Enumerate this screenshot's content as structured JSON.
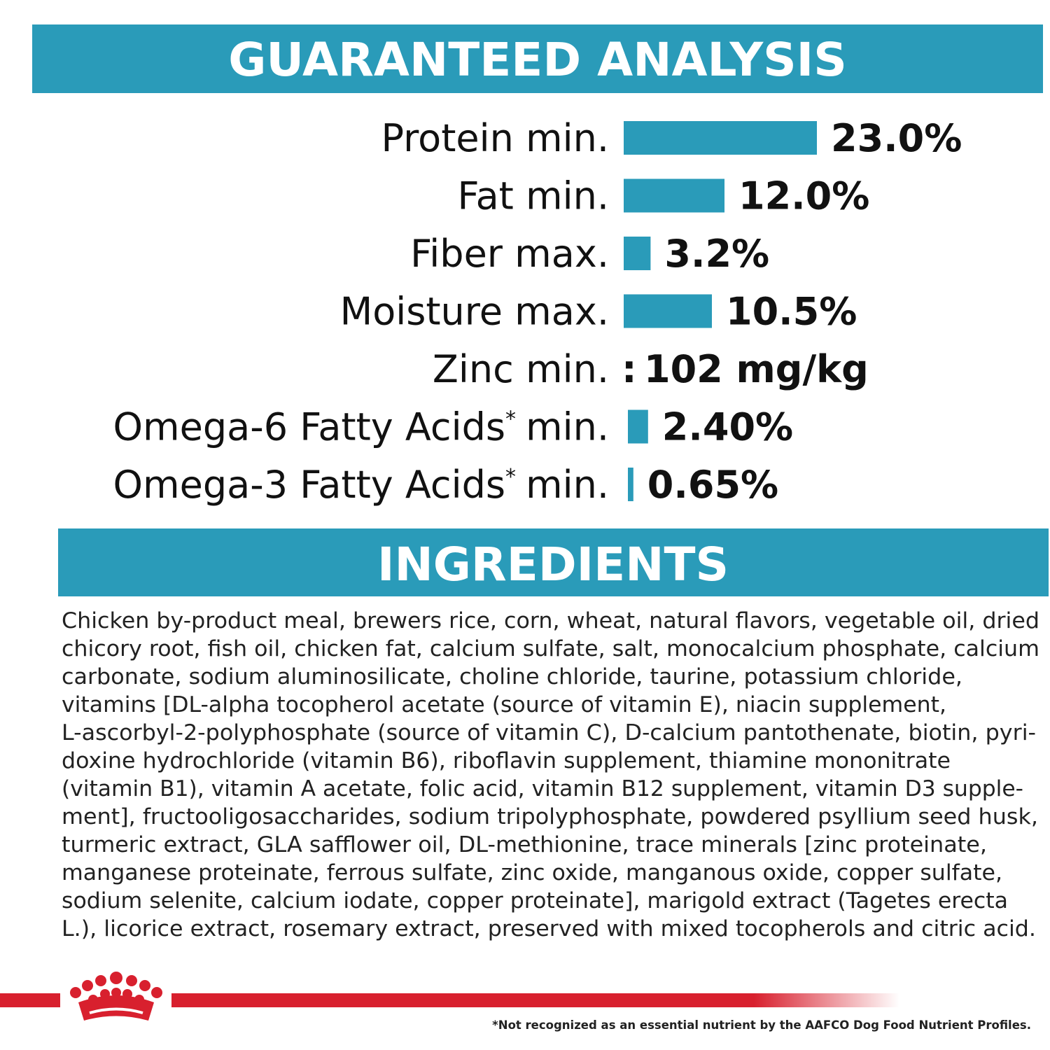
{
  "analysis": {
    "title": "GUARANTEED ANALYSIS",
    "rows": [
      {
        "label": "Protein min.",
        "value": 23.0,
        "value_label": "23.0%"
      },
      {
        "label": "Fat min.",
        "value": 12.0,
        "value_label": "12.0%"
      },
      {
        "label": "Fiber max.",
        "value": 3.2,
        "value_label": "3.2%"
      },
      {
        "label": "Moisture max.",
        "value": 10.5,
        "value_label": "10.5%"
      },
      {
        "label": "Zinc min.",
        "separator": ":",
        "value_text": "102 mg/kg"
      },
      {
        "label": "Omega-6 Fatty Acids",
        "note": "*",
        "qualifier": "min.",
        "value": 2.4,
        "value_label": "2.40%"
      },
      {
        "label": "Omega-3 Fatty Acids",
        "note": "*",
        "qualifier": "min.",
        "value": 0.65,
        "value_label": "0.65%"
      }
    ]
  },
  "ingredients": {
    "title": "INGREDIENTS",
    "lines": [
      "Chicken by-product meal, brewers rice, corn, wheat, natural flavors, vegetable oil, dried",
      "chicory root, fish oil, chicken fat, calcium sulfate, salt, monocalcium phosphate, calcium",
      "carbonate, sodium aluminosilicate, choline chloride, taurine, potassium chloride,",
      "vitamins [DL-alpha tocopherol acetate (source of vitamin E), niacin supplement,",
      "L-ascorbyl-2-polyphosphate (source of vitamin C), D-calcium pantothenate, biotin, pyri-",
      "doxine hydrochloride (vitamin B6), riboflavin supplement, thiamine mononitrate",
      "(vitamin B1), vitamin A acetate, folic acid, vitamin B12 supplement, vitamin D3 supple-",
      "ment], fructooligosaccharides, sodium tripolyphosphate, powdered psyllium seed husk,",
      "turmeric extract, GLA safflower oil, DL-methionine, trace minerals [zinc proteinate,",
      "manganese proteinate, ferrous sulfate, zinc oxide, manganous oxide, copper sulfate,",
      "sodium selenite, calcium iodate, copper proteinate], marigold extract (Tagetes erecta",
      "L.), licorice extract, rosemary extract, preserved with mixed tocopherols and citric acid."
    ]
  },
  "footnote": "*Not recognized as an essential nutrient by the AAFCO Dog Food Nutrient Profiles."
}
